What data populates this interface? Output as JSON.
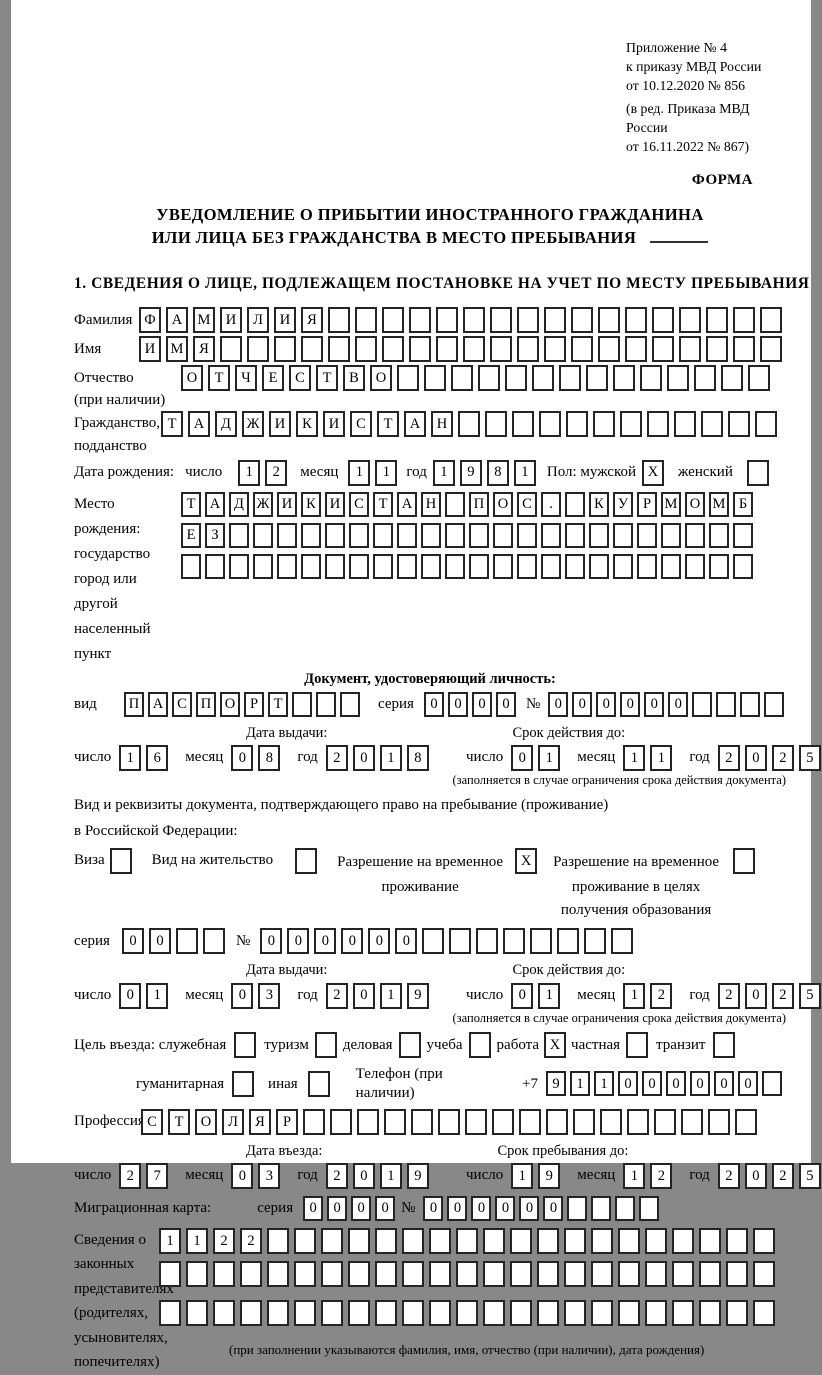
{
  "header": {
    "line1": "Приложение № 4",
    "line2": "к приказу МВД России",
    "line3": "от 10.12.2020 № 856",
    "line4": "(в ред. Приказа МВД России",
    "line5": "от 16.11.2022 № 867)",
    "forma": "ФОРМА"
  },
  "title": {
    "line1": "УВЕДОМЛЕНИЕ О ПРИБЫТИИ ИНОСТРАННОГО ГРАЖДАНИНА",
    "line2": "ИЛИ ЛИЦА БЕЗ ГРАЖДАНСТВА В МЕСТО ПРЕБЫВАНИЯ"
  },
  "section1": {
    "heading": "1. СВЕДЕНИЯ О ЛИЦЕ, ПОДЛЕЖАЩЕМ ПОСТАНОВКЕ НА УЧЕТ ПО МЕСТУ ПРЕБЫВАНИЯ"
  },
  "labels": {
    "surname": "Фамилия",
    "name": "Имя",
    "patronymic": "Отчество",
    "patronymic_note": "(при наличии)",
    "citizenship1": "Гражданство,",
    "citizenship2": "подданство",
    "birth_date": "Дата рождения:",
    "day": "число",
    "month": "месяц",
    "year": "год",
    "sex": "Пол: мужской",
    "female": "женский",
    "birthplace1": "Место рождения:",
    "birthplace2": "государство",
    "birthplace3": "город или другой",
    "birthplace4": "населенный пункт",
    "doc_heading": "Документ, удостоверяющий личность:",
    "doc_type": "вид",
    "series": "серия",
    "number": "№",
    "issue_date": "Дата выдачи:",
    "valid_until": "Срок действия до:",
    "valid_note": "(заполняется в случае ограничения срока действия документа)",
    "permit_line1": "Вид и реквизиты документа, подтверждающего право на пребывание (проживание)",
    "permit_line2": "в Российской Федерации:",
    "visa": "Виза",
    "residence_permit": "Вид на жительство",
    "temp_permit_l1": "Разрешение на временное",
    "temp_permit_l2": "проживание",
    "temp_edu_l1": "Разрешение на временное",
    "temp_edu_l2": "проживание в целях",
    "temp_edu_l3": "получения образования",
    "purpose": "Цель въезда: служебная",
    "tourism": "туризм",
    "business": "деловая",
    "study": "учеба",
    "work": "работа",
    "private": "частная",
    "transit": "транзит",
    "humanitarian": "гуманитарная",
    "other": "иная",
    "phone": "Телефон (при наличии)",
    "phone_prefix": "+7",
    "profession": "Профессия",
    "entry_date": "Дата въезда:",
    "stay_until": "Срок пребывания до:",
    "migration_card": "Миграционная карта:",
    "repr1": "Сведения о",
    "repr2": "законных",
    "repr3": "представителях",
    "repr4": "(родителях,",
    "repr5": "усыновителях,",
    "repr6": "попечителях)",
    "repr_note": "(при заполнении указываются фамилия, имя, отчество (при наличии), дата рождения)"
  },
  "fields": {
    "surname": {
      "value": "ФАМИЛИЯ",
      "length": 24
    },
    "name": {
      "value": "ИМЯ",
      "length": 24
    },
    "patronymic": {
      "value": "ОТЧЕСТВО",
      "length": 22
    },
    "citizenship": {
      "value": "ТАДЖИКИСТАН",
      "length": 23
    },
    "birth_day": {
      "value": "12",
      "length": 2
    },
    "birth_month": {
      "value": "11",
      "length": 2
    },
    "birth_year": {
      "value": "1981",
      "length": 4
    },
    "birthplace_row1": {
      "value": "ТАДЖИКИСТАН ПОС. КУРМОМБ",
      "length": 24
    },
    "birthplace_row2": {
      "value": "ЕЗ",
      "length": 24
    },
    "birthplace_row3": {
      "value": "",
      "length": 24
    },
    "doc_type": {
      "value": "ПАСПОРТ",
      "length": 10
    },
    "doc_series": {
      "value": "0000",
      "length": 4
    },
    "doc_number": {
      "value": "000000",
      "length": 10
    },
    "doc_issue_day": {
      "value": "16",
      "length": 2
    },
    "doc_issue_month": {
      "value": "08",
      "length": 2
    },
    "doc_issue_year": {
      "value": "2018",
      "length": 4
    },
    "doc_valid_day": {
      "value": "01",
      "length": 2
    },
    "doc_valid_month": {
      "value": "11",
      "length": 2
    },
    "doc_valid_year": {
      "value": "2025",
      "length": 4
    },
    "permit_series": {
      "value": "00",
      "length": 4
    },
    "permit_number": {
      "value": "000000",
      "length": 14
    },
    "permit_issue_day": {
      "value": "01",
      "length": 2
    },
    "permit_issue_month": {
      "value": "03",
      "length": 2
    },
    "permit_issue_year": {
      "value": "2019",
      "length": 4
    },
    "permit_valid_day": {
      "value": "01",
      "length": 2
    },
    "permit_valid_month": {
      "value": "12",
      "length": 2
    },
    "permit_valid_year": {
      "value": "2025",
      "length": 4
    },
    "phone": {
      "value": "911000000",
      "length": 10
    },
    "profession": {
      "value": "СТОЛЯР",
      "length": 23
    },
    "entry_day": {
      "value": "27",
      "length": 2
    },
    "entry_month": {
      "value": "03",
      "length": 2
    },
    "entry_year": {
      "value": "2019",
      "length": 4
    },
    "stay_day": {
      "value": "19",
      "length": 2
    },
    "stay_month": {
      "value": "12",
      "length": 2
    },
    "stay_year": {
      "value": "2025",
      "length": 4
    },
    "mig_series": {
      "value": "0000",
      "length": 4
    },
    "mig_number": {
      "value": "000000",
      "length": 10
    },
    "repr_row1": {
      "value": "1122",
      "length": 23
    },
    "repr_row2": {
      "value": "",
      "length": 23
    },
    "repr_row3": {
      "value": "",
      "length": 23
    }
  },
  "checkboxes": {
    "male": true,
    "female": false,
    "visa": false,
    "residence_permit": false,
    "temp_permit": true,
    "temp_edu": false,
    "official": false,
    "tourism": false,
    "business": false,
    "study": false,
    "work": true,
    "private": false,
    "transit": false,
    "humanitarian": false,
    "other": false
  }
}
